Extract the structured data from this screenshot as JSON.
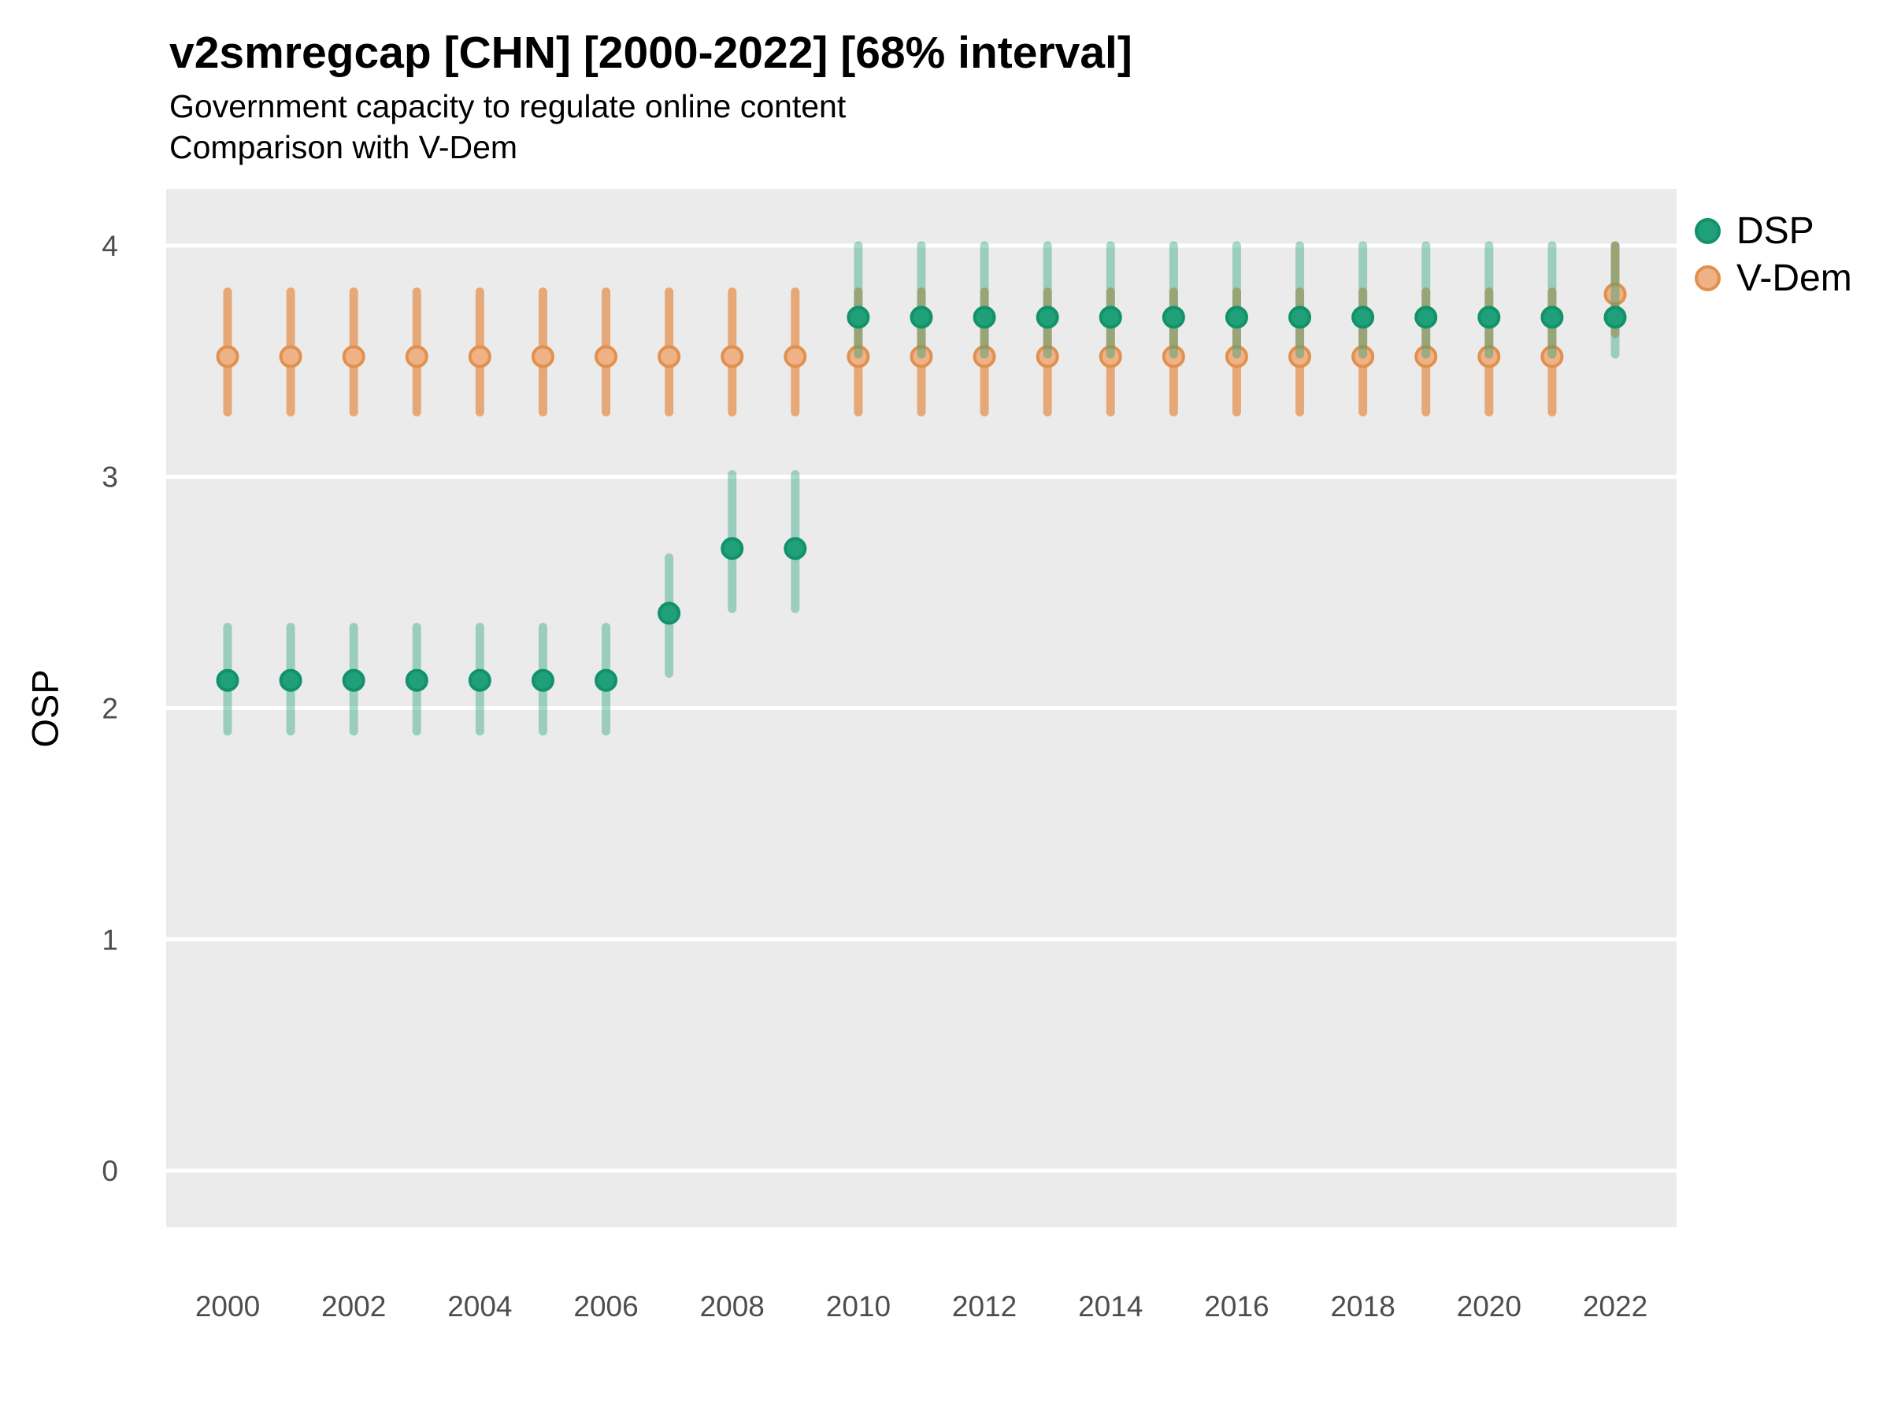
{
  "header": {
    "title": "v2smregcap [CHN] [2000-2022] [68% interval]",
    "subtitle1": "Government capacity to regulate online content",
    "subtitle2": "Comparison with V-Dem"
  },
  "axes": {
    "ylabel": "OSP",
    "y_tick_labels": [
      "0",
      "1",
      "2",
      "3",
      "4"
    ],
    "y_tick_values": [
      0,
      1,
      2,
      3,
      4
    ],
    "x_tick_labels": [
      "2000",
      "2002",
      "2004",
      "2006",
      "2008",
      "2010",
      "2012",
      "2014",
      "2016",
      "2018",
      "2020",
      "2022"
    ],
    "x_tick_values": [
      2000,
      2002,
      2004,
      2006,
      2008,
      2010,
      2012,
      2014,
      2016,
      2018,
      2020,
      2022
    ]
  },
  "legend": {
    "items": [
      {
        "label": "DSP",
        "fill": "#1FA078",
        "ring": "#12926A"
      },
      {
        "label": "V-Dem",
        "fill": "#EFB286",
        "ring": "#E0914E"
      }
    ]
  },
  "colors": {
    "panel_background": "#EBEBEB",
    "gridline": "#FFFFFF",
    "tick_label": "#4D4D4D",
    "dsp_point_fill": "#1FA078",
    "dsp_point_stroke": "#12926A",
    "dsp_bar": "#1B9E77",
    "dsp_bar_opacity": 0.38,
    "vdem_point_fill": "#EFB286",
    "vdem_point_stroke": "#E0914E",
    "vdem_bar": "#E7A878",
    "vdem_bar_opacity": 1
  },
  "chart_data": {
    "type": "scatter",
    "style": "pointrange",
    "title": "v2smregcap [CHN] [2000-2022] [68% interval]",
    "subtitle": [
      "Government capacity to regulate online content",
      "Comparison with V-Dem"
    ],
    "interval": "68%",
    "xlabel": "",
    "ylabel": "OSP",
    "ylim": [
      0,
      4
    ],
    "grid": "horizontal-major-only",
    "legend_position": "right",
    "x": [
      2000,
      2001,
      2002,
      2003,
      2004,
      2005,
      2006,
      2007,
      2008,
      2009,
      2010,
      2011,
      2012,
      2013,
      2014,
      2015,
      2016,
      2017,
      2018,
      2019,
      2020,
      2021,
      2022
    ],
    "series": [
      {
        "name": "V-Dem",
        "values": [
          3.52,
          3.52,
          3.52,
          3.52,
          3.52,
          3.52,
          3.52,
          3.52,
          3.52,
          3.52,
          3.52,
          3.52,
          3.52,
          3.52,
          3.52,
          3.52,
          3.52,
          3.52,
          3.52,
          3.52,
          3.52,
          3.52,
          3.79
        ],
        "lower": [
          3.28,
          3.28,
          3.28,
          3.28,
          3.28,
          3.28,
          3.28,
          3.28,
          3.28,
          3.28,
          3.28,
          3.28,
          3.28,
          3.28,
          3.28,
          3.28,
          3.28,
          3.28,
          3.28,
          3.28,
          3.28,
          3.28,
          3.62
        ],
        "upper": [
          3.8,
          3.8,
          3.8,
          3.8,
          3.8,
          3.8,
          3.8,
          3.8,
          3.8,
          3.8,
          3.8,
          3.8,
          3.8,
          3.8,
          3.8,
          3.8,
          3.8,
          3.8,
          3.8,
          3.8,
          3.8,
          3.8,
          4.0
        ]
      },
      {
        "name": "DSP",
        "values": [
          2.12,
          2.12,
          2.12,
          2.12,
          2.12,
          2.12,
          2.12,
          2.41,
          2.69,
          2.69,
          3.69,
          3.69,
          3.69,
          3.69,
          3.69,
          3.69,
          3.69,
          3.69,
          3.69,
          3.69,
          3.69,
          3.69,
          3.69
        ],
        "lower": [
          1.9,
          1.9,
          1.9,
          1.9,
          1.9,
          1.9,
          1.9,
          2.15,
          2.43,
          2.43,
          3.53,
          3.53,
          3.53,
          3.53,
          3.53,
          3.53,
          3.53,
          3.53,
          3.53,
          3.53,
          3.53,
          3.53,
          3.53
        ],
        "upper": [
          2.35,
          2.35,
          2.35,
          2.35,
          2.35,
          2.35,
          2.35,
          2.65,
          3.01,
          3.01,
          4.0,
          4.0,
          4.0,
          4.0,
          4.0,
          4.0,
          4.0,
          4.0,
          4.0,
          4.0,
          4.0,
          4.0,
          4.0
        ]
      }
    ]
  }
}
